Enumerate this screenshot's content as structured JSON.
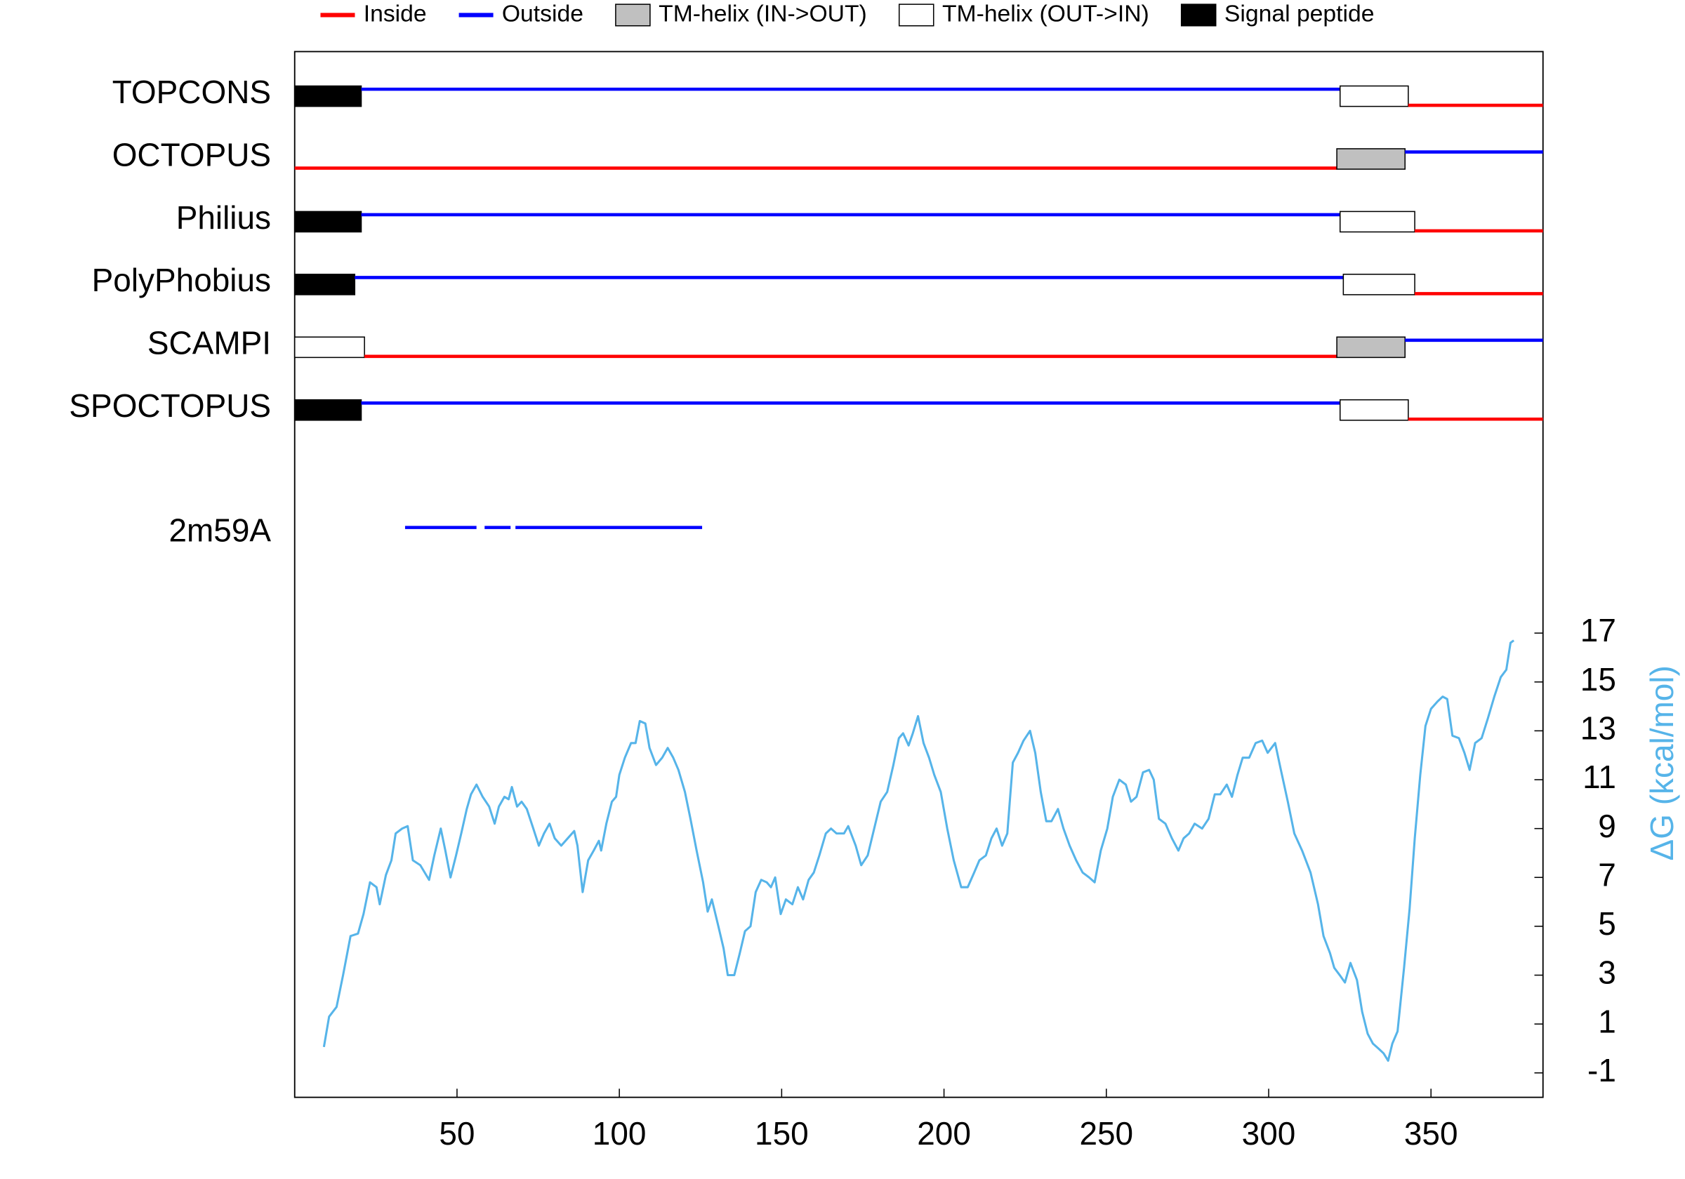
{
  "chart_data": {
    "type": "topology",
    "legend": [
      {
        "label": "Inside",
        "color": "#ff0000",
        "shape": "line"
      },
      {
        "label": "Outside",
        "color": "#0000ff",
        "shape": "line"
      },
      {
        "label": "TM-helix (IN->OUT)",
        "color": "#c0c0c0",
        "shape": "box"
      },
      {
        "label": "TM-helix (OUT->IN)",
        "color": "#ffffff",
        "shape": "box"
      },
      {
        "label": "Signal peptide",
        "color": "#000000",
        "shape": "box"
      }
    ],
    "predictions": [
      {
        "name": "TOPCONS",
        "segments": [
          {
            "start": 0,
            "end": 20.5,
            "class": "Signal peptide"
          },
          {
            "start": 20.5,
            "end": 322,
            "class": "Outside"
          },
          {
            "start": 322,
            "end": 343,
            "class": "TM-helix (OUT->IN)"
          },
          {
            "start": 343,
            "end": 384.5,
            "class": "Inside"
          }
        ]
      },
      {
        "name": "OCTOPUS",
        "segments": [
          {
            "start": 0,
            "end": 321,
            "class": "Inside"
          },
          {
            "start": 321,
            "end": 342,
            "class": "TM-helix (IN->OUT)"
          },
          {
            "start": 342,
            "end": 384.5,
            "class": "Outside"
          }
        ]
      },
      {
        "name": "Philius",
        "segments": [
          {
            "start": 0,
            "end": 20.5,
            "class": "Signal peptide"
          },
          {
            "start": 20.5,
            "end": 322,
            "class": "Outside"
          },
          {
            "start": 322,
            "end": 345,
            "class": "TM-helix (OUT->IN)"
          },
          {
            "start": 345,
            "end": 384.5,
            "class": "Inside"
          }
        ]
      },
      {
        "name": "PolyPhobius",
        "segments": [
          {
            "start": 0,
            "end": 18.5,
            "class": "Signal peptide"
          },
          {
            "start": 18.5,
            "end": 323,
            "class": "Outside"
          },
          {
            "start": 323,
            "end": 345,
            "class": "TM-helix (OUT->IN)"
          },
          {
            "start": 345,
            "end": 384.5,
            "class": "Inside"
          }
        ]
      },
      {
        "name": "SCAMPI",
        "segments": [
          {
            "start": 0,
            "end": 21.5,
            "class": "TM-helix (OUT->IN)"
          },
          {
            "start": 21.5,
            "end": 321,
            "class": "Inside"
          },
          {
            "start": 321,
            "end": 342,
            "class": "TM-helix (IN->OUT)"
          },
          {
            "start": 342,
            "end": 384.5,
            "class": "Outside"
          }
        ]
      },
      {
        "name": "SPOCTOPUS",
        "segments": [
          {
            "start": 0,
            "end": 20.5,
            "class": "Signal peptide"
          },
          {
            "start": 20.5,
            "end": 322,
            "class": "Outside"
          },
          {
            "start": 322,
            "end": 343,
            "class": "TM-helix (OUT->IN)"
          },
          {
            "start": 343,
            "end": 384.5,
            "class": "Inside"
          }
        ]
      }
    ],
    "homology": [
      {
        "name": "2m59A",
        "segments": [
          {
            "start": 34,
            "end": 56,
            "class": "Outside"
          },
          {
            "start": 58.5,
            "end": 66.5,
            "class": "Outside"
          },
          {
            "start": 68,
            "end": 125.5,
            "class": "Outside"
          }
        ]
      }
    ],
    "dg": {
      "y_label": "ΔG (kcal/mol)",
      "color": "#56b4e9",
      "x": [
        9,
        10.6,
        12.9,
        14.9,
        17.2,
        19.5,
        21.2,
        23.2,
        25.2,
        26.2,
        28.1,
        29.8,
        31.1,
        33.1,
        34.8,
        36.4,
        38.7,
        41.4,
        43,
        45,
        46.4,
        48,
        49.7,
        51.3,
        53,
        54.3,
        56,
        57.9,
        59.9,
        61.6,
        62.9,
        64.6,
        65.9,
        66.9,
        68.5,
        69.9,
        71.5,
        73.5,
        75.2,
        76.8,
        78.5,
        80.1,
        82.1,
        84.1,
        86.1,
        87.1,
        88.7,
        90.4,
        92.1,
        93.7,
        94.4,
        96,
        97.7,
        99,
        100,
        101.7,
        103.6,
        105,
        106.3,
        108,
        109.3,
        111.3,
        113.2,
        114.9,
        116.6,
        118.2,
        120.2,
        121.9,
        123.8,
        125.8,
        127.2,
        128.5,
        130.5,
        132.1,
        133.4,
        135.4,
        137.1,
        138.7,
        140.4,
        142,
        143.7,
        145.4,
        146.7,
        148,
        149.7,
        151.3,
        153.3,
        155,
        156.6,
        158.3,
        159.9,
        161.6,
        163.6,
        165.2,
        166.9,
        169.2,
        170.5,
        172.8,
        174.5,
        176.5,
        178.5,
        180.5,
        182.5,
        184.4,
        186.1,
        187.4,
        189.1,
        190.4,
        192,
        193.7,
        195.4,
        197,
        199,
        201,
        203,
        205.3,
        207.3,
        209.3,
        210.9,
        212.9,
        214.6,
        216.2,
        217.9,
        219.5,
        221.2,
        222.8,
        224.5,
        226.5,
        228.1,
        229.8,
        231.5,
        233.1,
        235.1,
        236.8,
        238.7,
        240.7,
        242.7,
        244.7,
        246.4,
        248.3,
        250.3,
        252,
        254,
        256,
        257.6,
        259.3,
        261.3,
        263.2,
        264.6,
        266.2,
        268.2,
        270.2,
        272.2,
        273.8,
        275.5,
        277.2,
        279.5,
        281.5,
        283.4,
        285.1,
        287.1,
        288.7,
        290.4,
        292,
        294,
        296,
        298,
        299.7,
        302,
        303.6,
        305.9,
        307.9,
        310.3,
        312.9,
        315.2,
        316.9,
        318.9,
        320.2,
        321.9,
        323.5,
        325.2,
        327.2,
        328.8,
        330.5,
        332.1,
        333.8,
        335.4,
        336.8,
        338.1,
        339.7,
        341.7,
        343.4,
        345,
        346.7,
        348.3,
        350,
        352,
        353.6,
        355,
        356.6,
        358.6,
        360.3,
        361.9,
        363.6,
        365.6,
        367.5,
        369.5,
        371.5,
        373.2,
        374.5,
        375.5
      ],
      "values": [
        0.06,
        1.3,
        1.7,
        3.0,
        4.6,
        4.7,
        5.5,
        6.8,
        6.6,
        5.9,
        7.1,
        7.7,
        8.8,
        9.0,
        9.1,
        7.7,
        7.5,
        6.9,
        7.9,
        9.0,
        8.1,
        7.0,
        7.9,
        8.8,
        9.8,
        10.4,
        10.8,
        10.3,
        9.9,
        9.2,
        9.9,
        10.3,
        10.2,
        10.7,
        9.9,
        10.1,
        9.8,
        9.0,
        8.3,
        8.8,
        9.2,
        8.6,
        8.3,
        8.6,
        8.9,
        8.3,
        6.4,
        7.7,
        8.1,
        8.5,
        8.1,
        9.2,
        10.1,
        10.3,
        11.2,
        11.9,
        12.5,
        12.5,
        13.4,
        13.3,
        12.3,
        11.6,
        11.9,
        12.3,
        11.9,
        11.4,
        10.5,
        9.4,
        8.1,
        6.8,
        5.6,
        6.1,
        5.0,
        4.1,
        3.0,
        3.0,
        3.9,
        4.8,
        5.0,
        6.4,
        6.9,
        6.8,
        6.6,
        7.0,
        5.5,
        6.1,
        5.9,
        6.6,
        6.1,
        6.9,
        7.2,
        7.9,
        8.8,
        9.0,
        8.8,
        8.8,
        9.1,
        8.3,
        7.5,
        7.9,
        9.0,
        10.1,
        10.5,
        11.6,
        12.7,
        12.9,
        12.4,
        12.9,
        13.6,
        12.5,
        11.9,
        11.2,
        10.5,
        9.0,
        7.7,
        6.6,
        6.6,
        7.2,
        7.7,
        7.9,
        8.6,
        9.0,
        8.3,
        8.8,
        11.7,
        12.1,
        12.6,
        13.0,
        12.1,
        10.5,
        9.3,
        9.3,
        9.8,
        9.0,
        8.3,
        7.7,
        7.2,
        7.0,
        6.8,
        8.1,
        9.0,
        10.3,
        11.0,
        10.8,
        10.1,
        10.3,
        11.3,
        11.4,
        11.0,
        9.4,
        9.2,
        8.6,
        8.1,
        8.6,
        8.8,
        9.2,
        9.0,
        9.4,
        10.4,
        10.4,
        10.8,
        10.3,
        11.2,
        11.9,
        11.9,
        12.5,
        12.6,
        12.1,
        12.5,
        11.5,
        10.1,
        8.8,
        8.1,
        7.2,
        5.9,
        4.6,
        3.9,
        3.3,
        3.0,
        2.7,
        3.5,
        2.8,
        1.5,
        0.6,
        0.2,
        0.0,
        -0.2,
        -0.5,
        0.2,
        0.7,
        3.3,
        5.7,
        8.6,
        11.2,
        13.2,
        13.9,
        14.2,
        14.4,
        14.3,
        12.8,
        12.7,
        12.1,
        11.4,
        12.5,
        12.7,
        13.5,
        14.4,
        15.2,
        15.5,
        16.6,
        16.7
      ],
      "ylim": [
        -2,
        40.8
      ],
      "yticks": [
        -1,
        1,
        3,
        5,
        7,
        9,
        11,
        13,
        15,
        17
      ]
    },
    "xlim": [
      0,
      384.5
    ],
    "xticks": [
      50,
      100,
      150,
      200,
      250,
      300,
      350
    ]
  }
}
